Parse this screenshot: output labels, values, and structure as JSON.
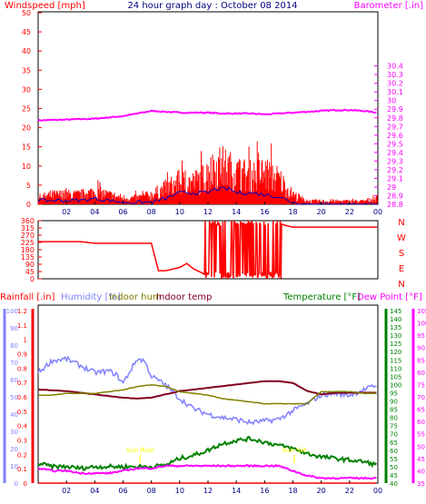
{
  "title": "24 hour graph day : October 08 2014",
  "colors": {
    "windspeed": "#ff0000",
    "gust": "#ff0000",
    "avg_wind": "#0000c0",
    "barometer": "#ff00ff",
    "direction": "#ff0000",
    "rainfall": "#ff0000",
    "humidity": "#8080ff",
    "indoor_hum": "#808000",
    "indoor_temp": "#800020",
    "temperature": "#008000",
    "dew_point": "#ff00ff",
    "sun": "#ffff00"
  },
  "chart_data": [
    {
      "type": "line",
      "panel": "wind-barometer",
      "left_axis_label": "Windspeed [mph]",
      "right_axis_label": "Barometer [.in]",
      "left_ylim": [
        0,
        50
      ],
      "left_ticks": [
        "0",
        "5",
        "10",
        "15",
        "20",
        "25",
        "30",
        "35",
        "40",
        "45",
        "50"
      ],
      "right_ylim": [
        28.8,
        30.9
      ],
      "right_ticks": [
        "28.8",
        "28.9",
        "29",
        "29.1",
        "29.2",
        "29.3",
        "29.4",
        "29.5",
        "29.6",
        "29.7",
        "29.8",
        "29.9",
        "30",
        "30.1",
        "30.2",
        "30.3",
        "30.4"
      ],
      "x_ticks": [
        "02",
        "04",
        "06",
        "08",
        "10",
        "12",
        "14",
        "16",
        "18",
        "20",
        "22",
        "00"
      ],
      "series": [
        {
          "key": "barometer",
          "axis": "right",
          "x": [
            0,
            2,
            4,
            6,
            7,
            8,
            9,
            10,
            11,
            12,
            13,
            14,
            15,
            16,
            17,
            18,
            19,
            20,
            21,
            22,
            23,
            24
          ],
          "values": [
            29.77,
            29.78,
            29.79,
            29.82,
            29.85,
            29.88,
            29.87,
            29.86,
            29.86,
            29.86,
            29.85,
            29.85,
            29.85,
            29.84,
            29.85,
            29.86,
            29.87,
            29.88,
            29.89,
            29.89,
            29.88,
            29.86
          ]
        },
        {
          "key": "windspeed",
          "axis": "left",
          "x": [
            0,
            1,
            2,
            3,
            4,
            5,
            6,
            7,
            8,
            9,
            10,
            11,
            12,
            12.5,
            13,
            13.5,
            14,
            15,
            16,
            17,
            18,
            19,
            20,
            21,
            22,
            23,
            24
          ],
          "values": [
            2,
            3,
            3,
            3,
            4,
            3,
            2,
            2,
            3,
            5,
            7,
            7,
            9,
            12,
            12,
            11,
            10,
            9,
            10,
            8,
            3,
            1,
            1,
            1,
            1,
            1,
            2
          ]
        },
        {
          "key": "avg_wind",
          "axis": "left",
          "x": [
            0,
            1,
            2,
            3,
            4,
            5,
            6,
            7,
            8,
            9,
            10,
            11,
            12,
            12.5,
            13,
            13.5,
            14,
            15,
            16,
            17,
            18,
            19,
            20,
            21,
            22,
            23,
            24
          ],
          "values": [
            1,
            1,
            1,
            1,
            1.5,
            1,
            0.5,
            0.5,
            0.5,
            1.5,
            3,
            3,
            3,
            4,
            4,
            4,
            3,
            3,
            2.5,
            2,
            0.5,
            0,
            0,
            0,
            0,
            0,
            0
          ]
        }
      ]
    },
    {
      "type": "line",
      "panel": "wind-direction",
      "left_ticks": [
        "0",
        "45",
        "90",
        "135",
        "180",
        "225",
        "270",
        "315",
        "360"
      ],
      "right_labels": [
        "N",
        "W",
        "S",
        "E",
        "N"
      ],
      "ylim": [
        0,
        360
      ],
      "series": [
        {
          "key": "direction",
          "x": [
            0,
            3,
            4,
            8,
            8.5,
            9,
            10,
            10.5,
            11,
            11.5,
            12,
            12.3,
            12.6,
            13,
            13.5,
            14,
            14.5,
            15,
            15.5,
            16,
            16.5,
            17,
            17.5,
            18,
            24
          ],
          "values": [
            230,
            230,
            220,
            220,
            50,
            50,
            70,
            95,
            60,
            40,
            15,
            350,
            20,
            330,
            15,
            345,
            20,
            345,
            10,
            350,
            330,
            345,
            330,
            320,
            320
          ]
        }
      ]
    },
    {
      "type": "line",
      "panel": "rain-humidity-temperature",
      "labels": [
        "Rainfall [.in]",
        "Humidity [%]",
        "Indoor hum",
        "Indoor temp",
        "Temperature [°F]",
        "Dew Point [°F]"
      ],
      "rain_ticks": [
        "0",
        "0.1",
        "0.2",
        "0.3",
        "0.4",
        "0.5",
        "0.6",
        "0.7",
        "0.8",
        "0.9",
        "1",
        "1.1",
        "1.2"
      ],
      "humidity_ticks": [
        "0",
        "10",
        "20",
        "30",
        "40",
        "50",
        "60",
        "70",
        "80",
        "90",
        "100"
      ],
      "temperature_ticks": [
        "40",
        "45",
        "50",
        "55",
        "60",
        "65",
        "70",
        "75",
        "80",
        "85",
        "90",
        "95",
        "100",
        "105",
        "110",
        "115",
        "120",
        "125",
        "130",
        "135",
        "140",
        "145"
      ],
      "dew_ticks": [
        "35",
        "40",
        "45",
        "50",
        "55",
        "60",
        "65",
        "70",
        "75",
        "80",
        "85",
        "90",
        "95",
        "100",
        "105"
      ],
      "sun_labels": [
        "Sun Rise",
        "Sun Set"
      ],
      "series": [
        {
          "key": "humidity",
          "scale": "humidity",
          "x": [
            0,
            1,
            2,
            3,
            4,
            5,
            5.5,
            6,
            7,
            7.5,
            8,
            9,
            10,
            11,
            12,
            13,
            14,
            15,
            16,
            17,
            18,
            19,
            20,
            21,
            22,
            23,
            24
          ],
          "values": [
            64,
            71,
            72,
            68,
            64,
            65,
            63,
            58,
            72,
            71,
            62,
            57,
            49,
            43,
            40,
            38,
            37,
            35,
            36,
            37,
            42,
            46,
            51,
            52,
            51,
            54,
            57
          ]
        },
        {
          "key": "indoor_temp",
          "scale": "temperature",
          "x": [
            0,
            1,
            2,
            3,
            4,
            5,
            6,
            7,
            8,
            9,
            10,
            11,
            12,
            13,
            14,
            15,
            16,
            17,
            18,
            19,
            20,
            21,
            22,
            23,
            24
          ],
          "values": [
            97,
            96.5,
            96,
            95,
            94,
            93,
            92,
            91.5,
            92,
            94,
            96,
            97,
            98,
            99,
            100,
            101,
            102,
            102,
            101,
            96,
            94,
            95,
            95,
            95,
            95
          ]
        },
        {
          "key": "indoor_hum",
          "scale": "humidity",
          "x": [
            0,
            1,
            2,
            3,
            4,
            5,
            6,
            7,
            8,
            9,
            10,
            11,
            12,
            13,
            14,
            15,
            16,
            17,
            18,
            19,
            20,
            21,
            22,
            23,
            24
          ],
          "values": [
            51,
            51,
            52,
            52,
            52,
            53,
            54,
            56,
            57,
            56,
            53,
            52,
            51,
            49,
            48,
            47,
            46,
            46,
            46,
            46,
            53,
            53,
            53,
            52,
            52
          ]
        },
        {
          "key": "temperature",
          "scale": "temperature",
          "x": [
            0,
            1,
            2,
            3,
            4,
            5,
            6,
            7,
            8,
            9,
            10,
            11,
            12,
            13,
            14,
            15,
            16,
            17,
            18,
            19,
            20,
            21,
            22,
            23,
            24
          ],
          "values": [
            52,
            50,
            50,
            49,
            50,
            50,
            50,
            50,
            50,
            51,
            55,
            57,
            60,
            64,
            66,
            67,
            65,
            63,
            61,
            58,
            56,
            55,
            54,
            53,
            51
          ]
        },
        {
          "key": "dew_point",
          "scale": "dewpoint",
          "x": [
            0,
            1,
            2,
            3,
            4,
            5,
            6,
            7,
            8,
            9,
            10,
            11,
            12,
            13,
            14,
            15,
            16,
            17,
            18,
            19,
            20,
            21,
            22,
            23,
            24
          ],
          "values": [
            41,
            40,
            40,
            39,
            39,
            39,
            40,
            41,
            41,
            42,
            42,
            42,
            42,
            42,
            42,
            42,
            42,
            42,
            40,
            38,
            37,
            37,
            37,
            37,
            37
          ]
        },
        {
          "key": "rainfall",
          "scale": "rain",
          "x": [
            0,
            24
          ],
          "values": [
            0,
            0
          ]
        }
      ]
    }
  ]
}
